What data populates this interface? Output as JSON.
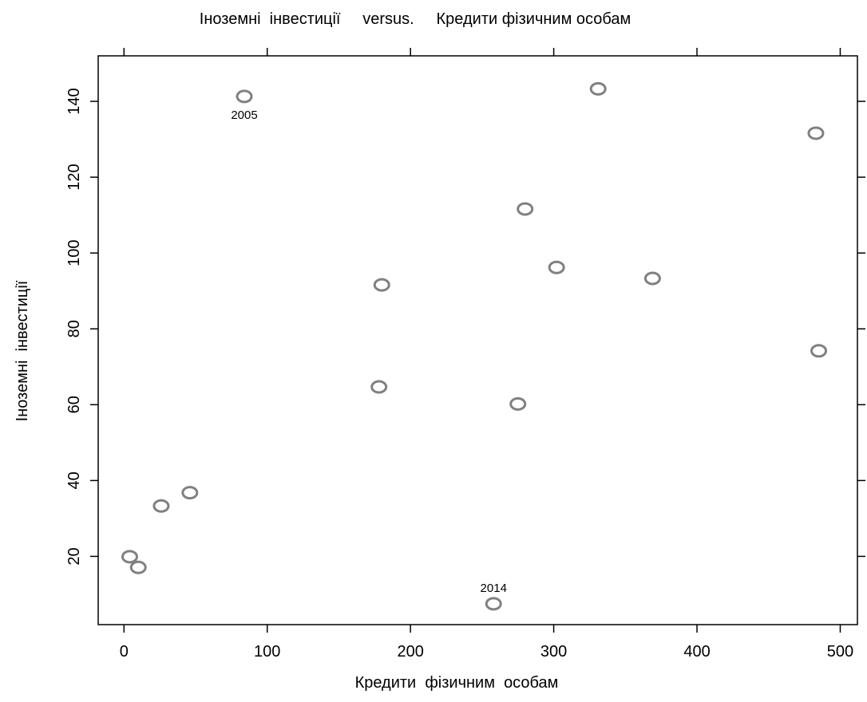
{
  "chart_data": {
    "type": "scatter",
    "title": "Іноземні  інвестиції     versus.     Кредити фізичним особам",
    "xlabel": "Кредити  фізичним  особам",
    "ylabel": "Іноземні  інвестиції",
    "xlim": [
      -18,
      512
    ],
    "ylim": [
      2,
      152
    ],
    "x_ticks": [
      0,
      100,
      200,
      300,
      400,
      500
    ],
    "x_tick_labels": [
      "0",
      "100",
      "200",
      "300",
      "400",
      "500"
    ],
    "y_ticks": [
      20,
      40,
      60,
      80,
      100,
      120,
      140
    ],
    "y_tick_labels": [
      "20",
      "40",
      "60",
      "80",
      "100",
      "120",
      "140"
    ],
    "grid": false,
    "point_color": "#808080",
    "points": [
      {
        "x": 84,
        "y": 141.3
      },
      {
        "x": 331,
        "y": 143.3
      },
      {
        "x": 483,
        "y": 131.6
      },
      {
        "x": 280,
        "y": 111.6
      },
      {
        "x": 302,
        "y": 96.2
      },
      {
        "x": 369,
        "y": 93.3
      },
      {
        "x": 180,
        "y": 91.6
      },
      {
        "x": 485,
        "y": 74.2
      },
      {
        "x": 178,
        "y": 64.7
      },
      {
        "x": 275,
        "y": 60.2
      },
      {
        "x": 46,
        "y": 36.8
      },
      {
        "x": 26,
        "y": 33.3
      },
      {
        "x": 4,
        "y": 19.9
      },
      {
        "x": 10,
        "y": 17.1
      },
      {
        "x": 258,
        "y": 7.5
      }
    ],
    "annotations": [
      {
        "text": "2005",
        "x": 84,
        "y": 141.3,
        "position": "below"
      },
      {
        "text": "2014",
        "x": 258,
        "y": 7.5,
        "position": "above"
      }
    ]
  }
}
